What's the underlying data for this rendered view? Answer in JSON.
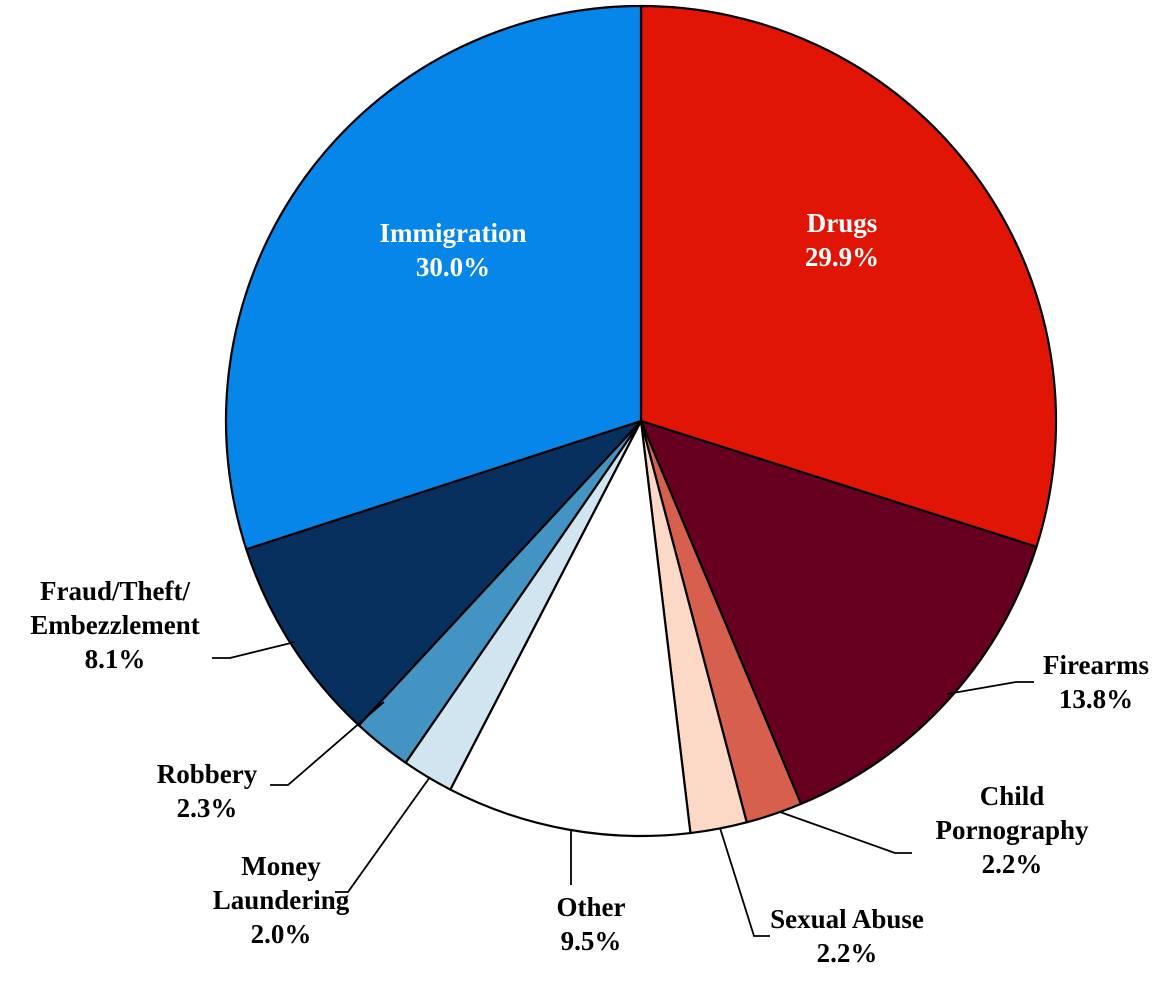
{
  "chart_data": {
    "type": "pie",
    "title": "",
    "start_angle_deg": 0,
    "direction": "clockwise",
    "slices": [
      {
        "label": "Drugs",
        "value": 29.9,
        "value_label": "29.9%",
        "color": "#e01505",
        "text_color": "#ffffff",
        "label_lines": [
          "Drugs"
        ]
      },
      {
        "label": "Firearms",
        "value": 13.8,
        "value_label": "13.8%",
        "color": "#670020",
        "text_color": "#000000",
        "label_lines": [
          "Firearms"
        ]
      },
      {
        "label": "Child Pornography",
        "value": 2.2,
        "value_label": "2.2%",
        "color": "#d6604d",
        "text_color": "#000000",
        "label_lines": [
          "Child",
          "Pornography"
        ]
      },
      {
        "label": "Sexual Abuse",
        "value": 2.2,
        "value_label": "2.2%",
        "color": "#fcd9c6",
        "text_color": "#000000",
        "label_lines": [
          "Sexual Abuse"
        ]
      },
      {
        "label": "Other",
        "value": 9.5,
        "value_label": "9.5%",
        "color": "#ffffff",
        "text_color": "#000000",
        "label_lines": [
          "Other"
        ]
      },
      {
        "label": "Money Laundering",
        "value": 2.0,
        "value_label": "2.0%",
        "color": "#d1e5f0",
        "text_color": "#000000",
        "label_lines": [
          "Money",
          "Laundering"
        ]
      },
      {
        "label": "Robbery",
        "value": 2.3,
        "value_label": "2.3%",
        "color": "#4393c3",
        "text_color": "#000000",
        "label_lines": [
          "Robbery"
        ]
      },
      {
        "label": "Fraud/Theft/Embezzlement",
        "value": 8.1,
        "value_label": "8.1%",
        "color": "#08305f",
        "text_color": "#000000",
        "label_lines": [
          "Fraud/Theft/",
          "Embezzlement"
        ]
      },
      {
        "label": "Immigration",
        "value": 30.0,
        "value_label": "30.0%",
        "color": "#0586e8",
        "text_color": "#ffffff",
        "label_lines": [
          "Immigration"
        ]
      }
    ]
  }
}
